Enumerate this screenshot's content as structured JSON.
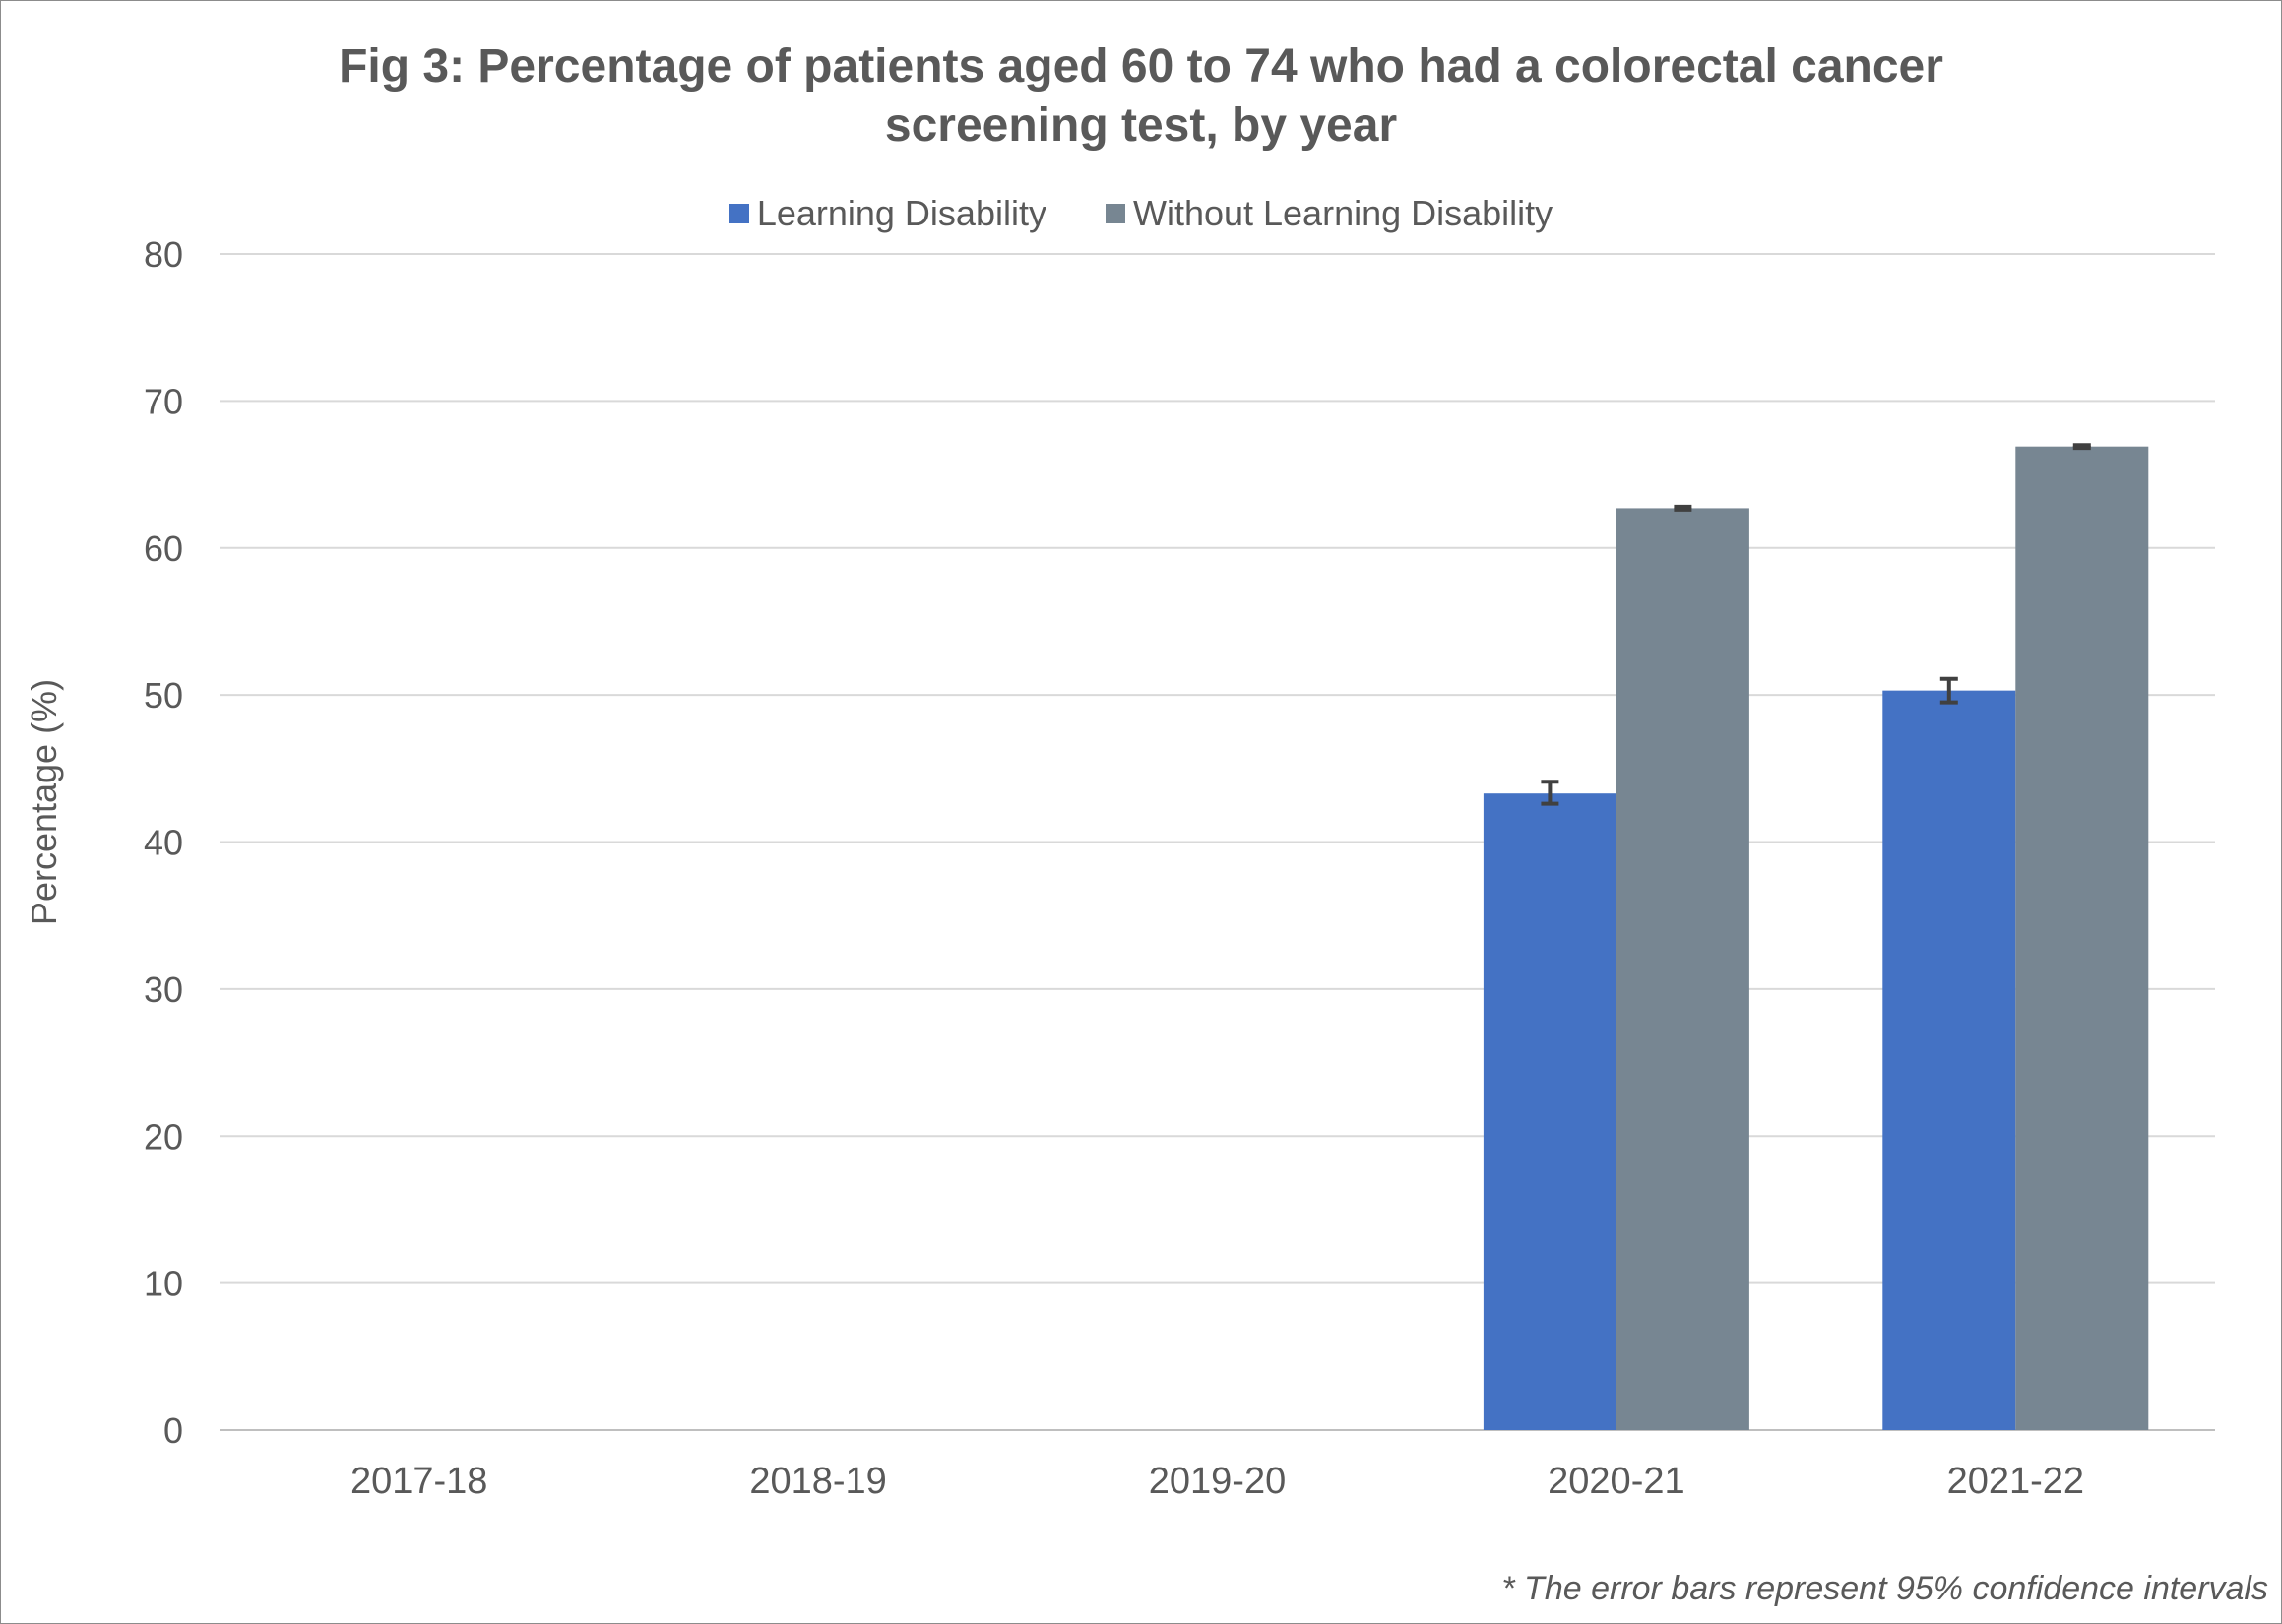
{
  "chart_data": {
    "type": "bar",
    "title_lines": [
      "Fig 3: Percentage of patients aged 60 to 74 who had a colorectal cancer",
      "screening test, by year"
    ],
    "xlabel": "",
    "ylabel": "Percentage (%)",
    "ylim": [
      0,
      80
    ],
    "yticks": [
      0,
      10,
      20,
      30,
      40,
      50,
      60,
      70,
      80
    ],
    "grid": true,
    "legend_position": "top-center",
    "categories": [
      "2017-18",
      "2018-19",
      "2019-20",
      "2020-21",
      "2021-22"
    ],
    "series": [
      {
        "name": "Learning Disability",
        "color": "#4472c4",
        "values": [
          null,
          null,
          null,
          43.3,
          50.3
        ],
        "error_low": [
          null,
          null,
          null,
          42.6,
          49.5
        ],
        "error_high": [
          null,
          null,
          null,
          44.1,
          51.1
        ]
      },
      {
        "name": "Without Learning Disability",
        "color": "#778692",
        "values": [
          null,
          null,
          null,
          62.7,
          66.9
        ],
        "error_low": [
          null,
          null,
          null,
          62.6,
          66.8
        ],
        "error_high": [
          null,
          null,
          null,
          62.8,
          67.0
        ]
      }
    ],
    "note": "* The error bars represent 95% confidence intervals"
  }
}
